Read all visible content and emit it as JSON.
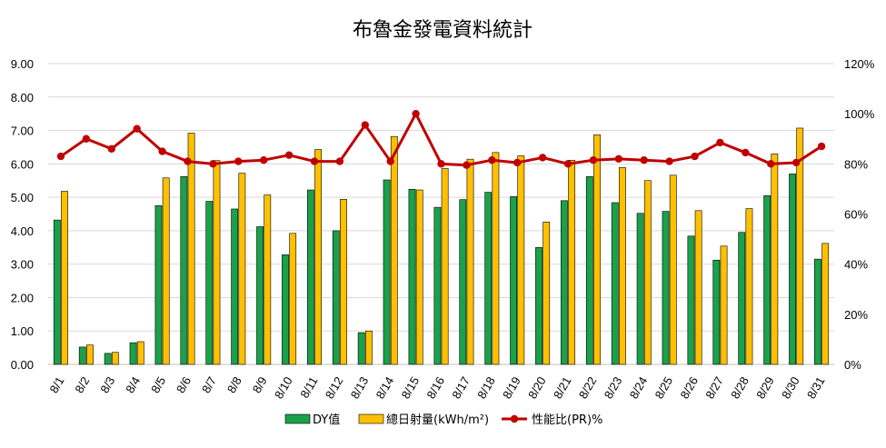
{
  "chart_data": {
    "type": "bar",
    "title": "布魯金發電資料統計",
    "categories": [
      "8/1",
      "8/2",
      "8/3",
      "8/4",
      "8/5",
      "8/6",
      "8/7",
      "8/8",
      "8/9",
      "8/10",
      "8/11",
      "8/12",
      "8/13",
      "8/14",
      "8/15",
      "8/16",
      "8/17",
      "8/18",
      "8/19",
      "8/20",
      "8/21",
      "8/22",
      "8/23",
      "8/24",
      "8/25",
      "8/26",
      "8/27",
      "8/28",
      "8/29",
      "8/30",
      "8/31"
    ],
    "y_left": {
      "ylim": [
        0,
        9
      ],
      "ticks": [
        "0.00",
        "1.00",
        "2.00",
        "3.00",
        "4.00",
        "5.00",
        "6.00",
        "7.00",
        "8.00",
        "9.00"
      ]
    },
    "y_right": {
      "ylim": [
        0,
        120
      ],
      "ticks": [
        "0%",
        "20%",
        "40%",
        "60%",
        "80%",
        "100%",
        "120%"
      ]
    },
    "grid": true,
    "legend_position": "bottom",
    "series": [
      {
        "name": "DY值",
        "type": "bar",
        "axis": "left",
        "color": "#1aa14a",
        "values": [
          4.32,
          0.52,
          0.33,
          0.65,
          4.75,
          5.62,
          4.88,
          4.65,
          4.12,
          3.28,
          5.22,
          4.0,
          0.95,
          5.52,
          5.24,
          4.7,
          4.93,
          5.15,
          5.02,
          3.5,
          4.9,
          5.62,
          4.84,
          4.52,
          4.58,
          3.84,
          3.12,
          3.95,
          5.05,
          5.7,
          3.15
        ]
      },
      {
        "name": "總日射量(kWh/m²)",
        "type": "bar",
        "axis": "left",
        "color": "#ffc000",
        "values": [
          5.18,
          0.58,
          0.36,
          0.68,
          5.58,
          6.92,
          6.1,
          5.72,
          5.07,
          3.92,
          6.43,
          4.94,
          1.0,
          6.82,
          5.22,
          5.86,
          6.14,
          6.34,
          6.24,
          4.26,
          6.11,
          6.87,
          5.89,
          5.5,
          5.66,
          4.6,
          3.54,
          4.66,
          6.3,
          7.07,
          3.62
        ]
      },
      {
        "name": "性能比(PR)%",
        "type": "line",
        "axis": "right",
        "color": "#c00000",
        "values": [
          83,
          90,
          86,
          94,
          85,
          81,
          80,
          81,
          81.5,
          83.5,
          81,
          81,
          95.5,
          81,
          100,
          80,
          79.5,
          81.5,
          80.5,
          82.5,
          80,
          81.5,
          82,
          81.5,
          81,
          83,
          88.5,
          84.5,
          80,
          80.5,
          87
        ]
      }
    ]
  }
}
